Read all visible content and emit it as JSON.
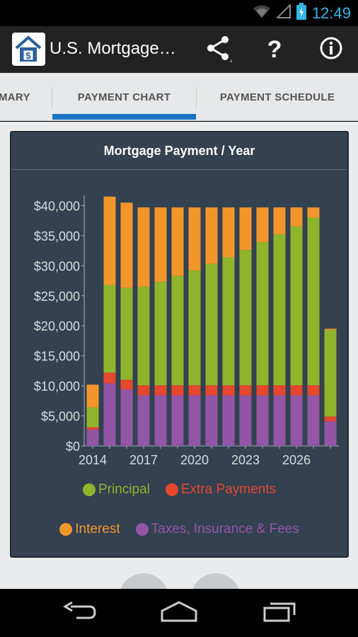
{
  "status_bar": {
    "time": "12:49",
    "icons": [
      "wifi-icon",
      "signal-icon",
      "battery-charging-icon"
    ]
  },
  "action_bar": {
    "title": "U.S. Mortgage…",
    "icon": "house-dollar-app-icon",
    "buttons": [
      "share-icon",
      "help-icon",
      "info-icon"
    ]
  },
  "tabs": [
    {
      "label": "MARY",
      "active": false
    },
    {
      "label": "PAYMENT CHART",
      "active": true
    },
    {
      "label": "PAYMENT SCHEDULE",
      "active": false
    }
  ],
  "colors": {
    "principal": "#8fb52c",
    "extra": "#e5472f",
    "interest": "#f2962c",
    "taxes": "#9356a6",
    "accent": "#1b73c6",
    "card_bg": "#334150"
  },
  "card": {
    "title": "Mortgage Payment / Year"
  },
  "chart_data": {
    "type": "bar",
    "stacked": true,
    "title": "Mortgage Payment / Year",
    "x": [
      2014,
      2015,
      2016,
      2017,
      2018,
      2019,
      2020,
      2021,
      2022,
      2023,
      2024,
      2025,
      2026,
      2027,
      2028
    ],
    "x_tick_labels": [
      "2014",
      "2017",
      "2020",
      "2023",
      "2026"
    ],
    "y_tick_labels": [
      "$0",
      "$5,000",
      "$10,000",
      "$15,000",
      "$20,000",
      "$25,000",
      "$30,000",
      "$35,000",
      "$40,000"
    ],
    "ylim": [
      0,
      41000
    ],
    "series": [
      {
        "name": "Taxes, Insurance & Fees",
        "color": "#9356a6",
        "values": [
          2700,
          10400,
          9400,
          8400,
          8400,
          8400,
          8400,
          8400,
          8400,
          8400,
          8400,
          8400,
          8400,
          8400,
          4100
        ]
      },
      {
        "name": "Extra Payments",
        "color": "#e5472f",
        "values": [
          400,
          1800,
          1600,
          1700,
          1700,
          1700,
          1700,
          1700,
          1700,
          1700,
          1700,
          1700,
          1700,
          1700,
          800
        ]
      },
      {
        "name": "Principal",
        "color": "#8fb52c",
        "values": [
          3300,
          14600,
          15300,
          16400,
          17200,
          18200,
          19100,
          20200,
          21300,
          22500,
          23800,
          25100,
          26400,
          27900,
          14400
        ]
      },
      {
        "name": "Interest",
        "color": "#f2962c",
        "values": [
          3800,
          14700,
          14200,
          13200,
          12400,
          11400,
          10500,
          9400,
          8300,
          7100,
          5800,
          4500,
          3200,
          1700,
          200
        ]
      }
    ],
    "legend": {
      "rows": [
        [
          "Principal",
          "Extra Payments"
        ],
        [
          "Interest",
          "Taxes, Insurance & Fees"
        ]
      ],
      "placement": "bottom"
    },
    "grid": false
  }
}
